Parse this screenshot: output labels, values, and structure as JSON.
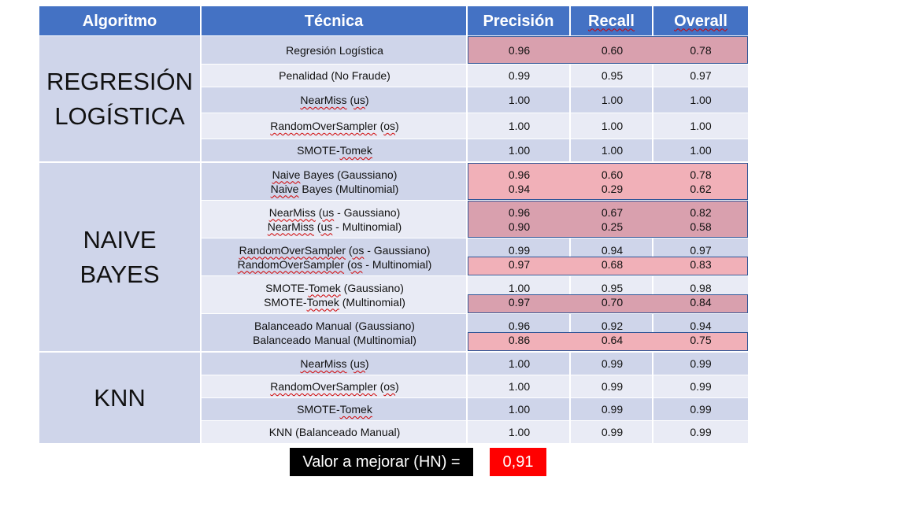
{
  "headers": [
    "Algoritmo",
    "Técnica",
    "Precisión",
    "Recall",
    "Overall"
  ],
  "groups": [
    {
      "name": "REGRESIÓN\nLOGÍSTICA",
      "rows": [
        {
          "lines": [
            {
              "tec": "Regresión Logística",
              "p": "0.96",
              "r": "0.60",
              "o": "0.78"
            }
          ],
          "highlight": "strong"
        },
        {
          "lines": [
            {
              "tec": "Penalidad (No Fraude)",
              "p": "0.99",
              "r": "0.95",
              "o": "0.97"
            }
          ]
        },
        {
          "lines": [
            {
              "tec": "NearMiss (us)",
              "p": "1.00",
              "r": "1.00",
              "o": "1.00"
            }
          ]
        },
        {
          "lines": [
            {
              "tec": "RandomOverSampler (os)",
              "p": "1.00",
              "r": "1.00",
              "o": "1.00"
            }
          ]
        },
        {
          "lines": [
            {
              "tec": "SMOTE-Tomek",
              "p": "1.00",
              "r": "1.00",
              "o": "1.00"
            }
          ]
        }
      ]
    },
    {
      "name": "NAIVE\nBAYES",
      "rows": [
        {
          "lines": [
            {
              "tec": "Naive Bayes (Gaussiano)",
              "p": "0.96",
              "r": "0.60",
              "o": "0.78"
            },
            {
              "tec": "Naive Bayes (Multinomial)",
              "p": "0.94",
              "r": "0.29",
              "o": "0.62"
            }
          ],
          "highlight": "light"
        },
        {
          "lines": [
            {
              "tec": "NearMiss (us - Gaussiano)",
              "p": "0.96",
              "r": "0.67",
              "o": "0.82"
            },
            {
              "tec": "NearMiss (us - Multinomial)",
              "p": "0.90",
              "r": "0.25",
              "o": "0.58"
            }
          ],
          "highlight": "strong"
        },
        {
          "lines": [
            {
              "tec": "RandomOverSampler (os - Gaussiano)",
              "p": "0.99",
              "r": "0.94",
              "o": "0.97"
            },
            {
              "tec": "RandomOverSampler (os - Multinomial)",
              "p": "0.97",
              "r": "0.68",
              "o": "0.83"
            }
          ],
          "highlight": "light-second"
        },
        {
          "lines": [
            {
              "tec": "SMOTE-Tomek (Gaussiano)",
              "p": "1.00",
              "r": "0.95",
              "o": "0.98"
            },
            {
              "tec": "SMOTE-Tomek (Multinomial)",
              "p": "0.97",
              "r": "0.70",
              "o": "0.84"
            }
          ],
          "highlight": "strong-second"
        },
        {
          "lines": [
            {
              "tec": "Balanceado Manual (Gaussiano)",
              "p": "0.96",
              "r": "0.92",
              "o": "0.94"
            },
            {
              "tec": "Balanceado Manual (Multinomial)",
              "p": "0.86",
              "r": "0.64",
              "o": "0.75"
            }
          ],
          "highlight": "light-second"
        }
      ]
    },
    {
      "name": "KNN",
      "rows": [
        {
          "lines": [
            {
              "tec": "NearMiss (us)",
              "p": "1.00",
              "r": "0.99",
              "o": "0.99"
            }
          ]
        },
        {
          "lines": [
            {
              "tec": "RandomOverSampler (os)",
              "p": "1.00",
              "r": "0.99",
              "o": "0.99"
            }
          ]
        },
        {
          "lines": [
            {
              "tec": "SMOTE-Tomek",
              "p": "1.00",
              "r": "0.99",
              "o": "0.99"
            }
          ]
        },
        {
          "lines": [
            {
              "tec": "KNN (Balanceado Manual)",
              "p": "1.00",
              "r": "0.99",
              "o": "0.99"
            }
          ]
        }
      ]
    }
  ],
  "footer": {
    "label": "Valor a mejorar (HN) =",
    "value": "0,91"
  },
  "colors": {
    "header": "#4472C4",
    "band_dark": "#CFD5EA",
    "band_light": "#E9EBF5",
    "highlight_strong": "#D9A0AE",
    "highlight_light": "#F1B0B8",
    "footer_value": "#FF0000"
  }
}
